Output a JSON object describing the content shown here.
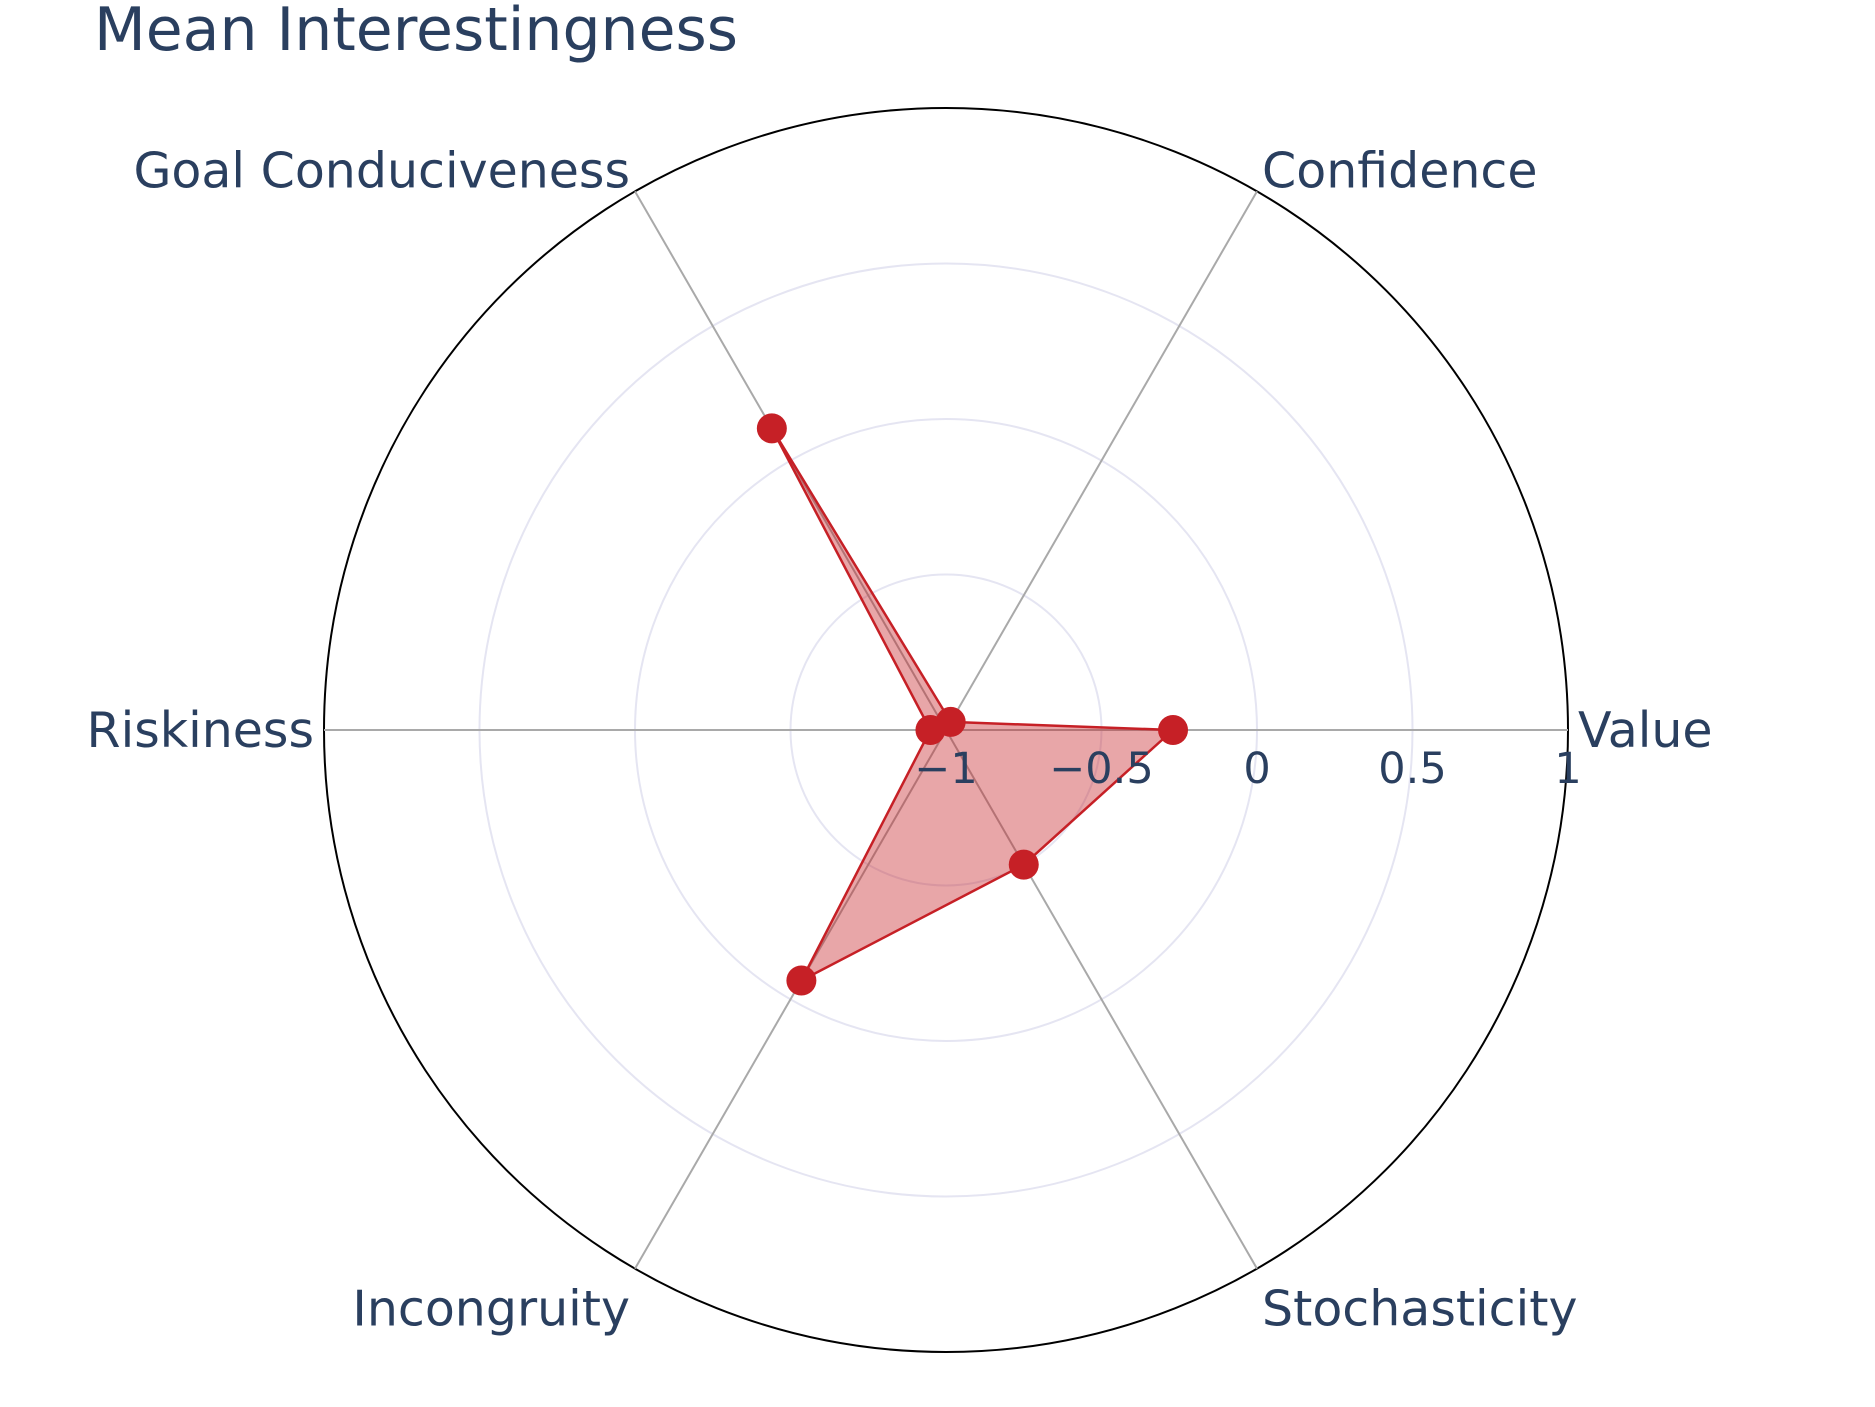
{
  "chart_data": {
    "type": "radar",
    "title": "Mean Interestingness",
    "axes": [
      "Value",
      "Confidence",
      "Goal Conduciveness",
      "Riskiness",
      "Incongruity",
      "Stochasticity"
    ],
    "radial_range": [
      -1,
      1
    ],
    "radial_ticks": [
      {
        "value": -1,
        "label": "−1"
      },
      {
        "value": -0.5,
        "label": "−0.5"
      },
      {
        "value": 0,
        "label": "0"
      },
      {
        "value": 0.5,
        "label": "0.5"
      },
      {
        "value": 1,
        "label": "1"
      }
    ],
    "series": [
      {
        "values": [
          -0.27,
          -0.97,
          0.12,
          -0.95,
          -0.07,
          -0.5
        ]
      }
    ],
    "colors": {
      "line": "#c62026",
      "fill": "#c62026",
      "text": "#2a3f5f",
      "outer_circle": "#000000",
      "spokes": "#a9a9a9",
      "grid": "#e5e5f2"
    }
  }
}
